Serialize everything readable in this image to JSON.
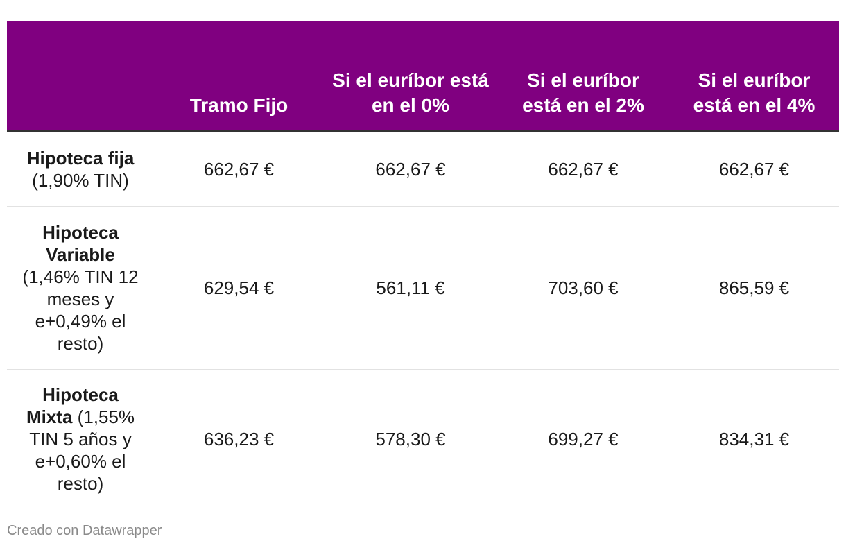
{
  "chart_data": {
    "type": "table",
    "columns": [
      "",
      "Tramo Fijo",
      "Si el euríbor está en el 0%",
      "Si el euríbor está en el 2%",
      "Si el euríbor está en el 4%"
    ],
    "rows": [
      {
        "label_bold": "Hipoteca fija",
        "label_rest": "(1,90% TIN)",
        "values": [
          "662,67 €",
          "662,67 €",
          "662,67 €",
          "662,67 €"
        ]
      },
      {
        "label_bold": "Hipoteca Variable",
        "label_rest": "(1,46% TIN 12 meses y e+0,49% el resto)",
        "values": [
          "629,54 €",
          "561,11 €",
          "703,60 €",
          "865,59 €"
        ]
      },
      {
        "label_bold": "Hipoteca Mixta",
        "label_rest": "(1,55% TIN 5 años y e+0,60% el resto)",
        "values": [
          "636,23 €",
          "578,30 €",
          "699,27 €",
          "834,31 €"
        ]
      }
    ]
  },
  "colors": {
    "header_background": "#800080",
    "header_text": "#ffffff"
  },
  "footer": {
    "credit": "Creado con Datawrapper"
  }
}
